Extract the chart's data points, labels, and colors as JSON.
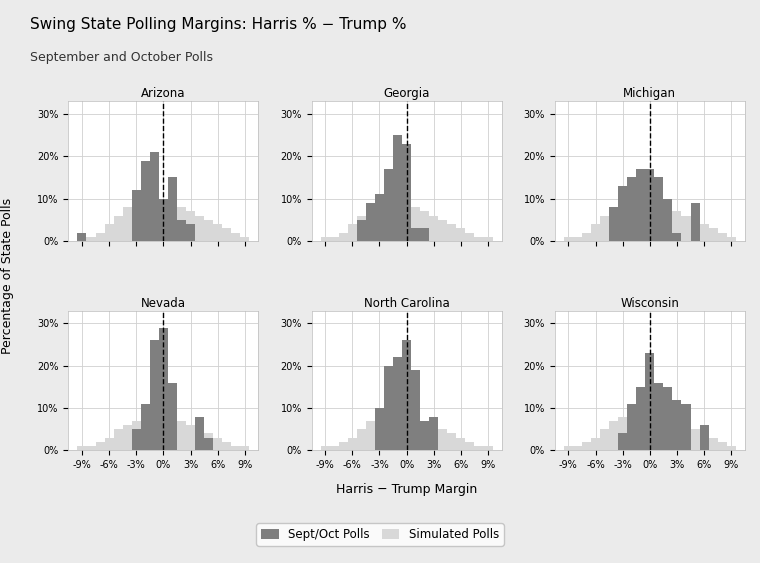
{
  "title": "Swing State Polling Margins: Harris % − Trump %",
  "subtitle": "September and October Polls",
  "xlabel": "Harris − Trump Margin",
  "ylabel": "Percentage of State Polls",
  "states": [
    "Arizona",
    "Georgia",
    "Michigan",
    "Nevada",
    "North Carolina",
    "Wisconsin"
  ],
  "bin_centers": [
    -9,
    -8,
    -7,
    -6,
    -5,
    -4,
    -3,
    -2,
    -1,
    0,
    1,
    2,
    3,
    4,
    5,
    6,
    7,
    8,
    9
  ],
  "dark_data": {
    "Arizona": [
      2,
      0,
      0,
      0,
      0,
      0,
      12,
      19,
      21,
      10,
      15,
      5,
      4,
      0,
      0,
      0,
      0,
      0,
      0
    ],
    "Georgia": [
      0,
      0,
      0,
      0,
      5,
      9,
      11,
      17,
      25,
      23,
      3,
      3,
      0,
      0,
      0,
      0,
      0,
      0,
      0
    ],
    "Michigan": [
      0,
      0,
      0,
      0,
      0,
      8,
      13,
      15,
      17,
      17,
      15,
      10,
      2,
      0,
      9,
      0,
      0,
      0,
      0
    ],
    "Nevada": [
      0,
      0,
      0,
      0,
      0,
      0,
      5,
      11,
      26,
      29,
      16,
      0,
      0,
      8,
      3,
      0,
      0,
      0,
      0
    ],
    "North Carolina": [
      0,
      0,
      0,
      0,
      0,
      0,
      10,
      20,
      22,
      26,
      19,
      7,
      8,
      0,
      0,
      0,
      0,
      0,
      0
    ],
    "Wisconsin": [
      0,
      0,
      0,
      0,
      0,
      0,
      4,
      11,
      15,
      23,
      16,
      15,
      12,
      11,
      0,
      6,
      0,
      0,
      0
    ]
  },
  "light_data": {
    "Arizona": [
      1,
      1,
      2,
      4,
      6,
      8,
      9,
      10,
      10,
      10,
      9,
      8,
      7,
      6,
      5,
      4,
      3,
      2,
      1
    ],
    "Georgia": [
      1,
      1,
      2,
      4,
      6,
      8,
      9,
      9,
      9,
      9,
      8,
      7,
      6,
      5,
      4,
      3,
      2,
      1,
      1
    ],
    "Michigan": [
      1,
      1,
      2,
      4,
      6,
      8,
      9,
      10,
      10,
      10,
      9,
      8,
      7,
      6,
      5,
      4,
      3,
      2,
      1
    ],
    "Nevada": [
      1,
      1,
      2,
      3,
      5,
      6,
      7,
      8,
      9,
      9,
      8,
      7,
      6,
      5,
      4,
      3,
      2,
      1,
      1
    ],
    "North Carolina": [
      1,
      1,
      2,
      3,
      5,
      7,
      8,
      9,
      9,
      9,
      8,
      7,
      6,
      5,
      4,
      3,
      2,
      1,
      1
    ],
    "Wisconsin": [
      1,
      1,
      2,
      3,
      5,
      7,
      8,
      9,
      9,
      9,
      8,
      8,
      7,
      6,
      5,
      4,
      3,
      2,
      1
    ]
  },
  "dark_color": "#7f7f7f",
  "light_color": "#d8d8d8",
  "background_color": "#ebebeb",
  "plot_bg_color": "#ffffff",
  "grid_color": "#d0d0d0",
  "xticks": [
    -9,
    -6,
    -3,
    0,
    3,
    6,
    9
  ],
  "xtick_labels": [
    "-9%",
    "-6%",
    "-3%",
    "0%",
    "3%",
    "6%",
    "9%"
  ],
  "yticks": [
    0,
    10,
    20,
    30
  ],
  "ytick_labels": [
    "0%",
    "10%",
    "20%",
    "30%"
  ],
  "ylim": [
    0,
    33
  ],
  "legend_labels": [
    "Sept/Oct Polls",
    "Simulated Polls"
  ]
}
